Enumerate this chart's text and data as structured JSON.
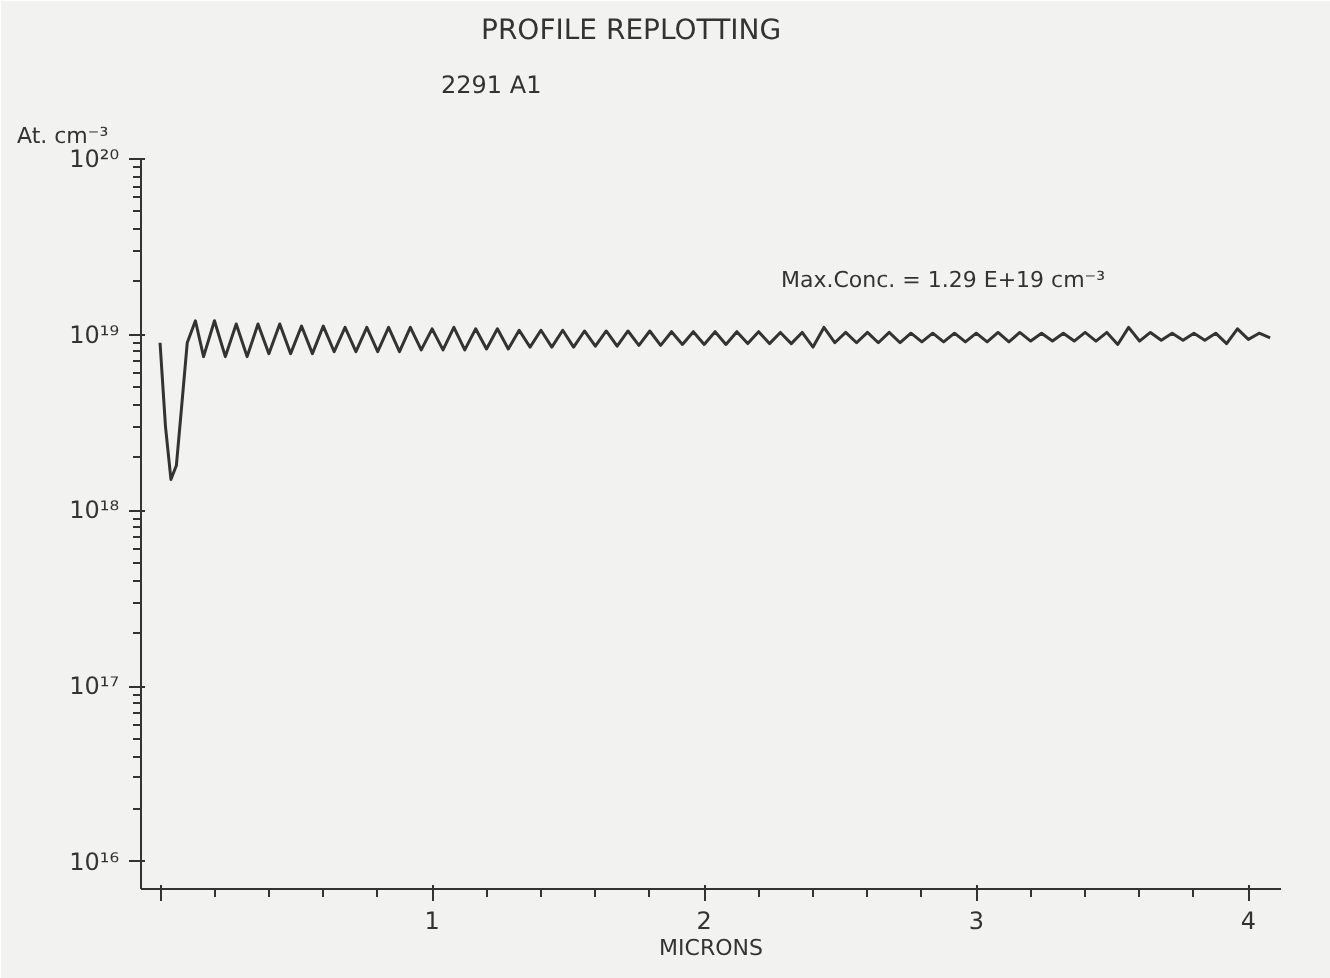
{
  "chart_data": {
    "type": "line",
    "title": "PROFILE REPLOTTING",
    "subtitle": "2291 A1",
    "xlabel": "MICRONS",
    "ylabel": "At. cm⁻³",
    "annotations": [
      "Max.Conc. = 1.29 E+19 cm⁻³"
    ],
    "log": "y",
    "grid": false,
    "marker": "none",
    "line_style": "solid",
    "xlim": [
      -0.07,
      4.12
    ],
    "ylim": [
      7000000000000000.0,
      1e+20
    ],
    "xticks": [
      {
        "value": 0,
        "label": null
      },
      1,
      2,
      3,
      4
    ],
    "yticks": [
      {
        "value": 1e+16,
        "label": "10¹⁶"
      },
      {
        "value": 1e+17,
        "label": "10¹⁷"
      },
      {
        "value": 1e+18,
        "label": "10¹⁸"
      },
      {
        "value": 1e+19,
        "label": "10¹⁹"
      },
      {
        "value": 1e+20,
        "label": "10²⁰"
      }
    ],
    "series": [
      {
        "color": "#333333",
        "x": [
          0,
          0.02,
          0.04,
          0.06,
          0.08,
          0.1,
          0.13,
          0.16,
          0.2,
          0.24,
          0.28,
          0.32,
          0.36,
          0.4,
          0.44,
          0.48,
          0.52,
          0.56,
          0.6,
          0.64,
          0.68,
          0.72,
          0.76,
          0.8,
          0.84,
          0.88,
          0.92,
          0.96,
          1.0,
          1.04,
          1.08,
          1.12,
          1.16,
          1.2,
          1.24,
          1.28,
          1.32,
          1.36,
          1.4,
          1.44,
          1.48,
          1.52,
          1.56,
          1.6,
          1.64,
          1.68,
          1.72,
          1.76,
          1.8,
          1.84,
          1.88,
          1.92,
          1.96,
          2.0,
          2.04,
          2.08,
          2.12,
          2.16,
          2.2,
          2.24,
          2.28,
          2.32,
          2.36,
          2.4,
          2.44,
          2.48,
          2.52,
          2.56,
          2.6,
          2.64,
          2.68,
          2.72,
          2.76,
          2.8,
          2.84,
          2.88,
          2.92,
          2.96,
          3.0,
          3.04,
          3.08,
          3.12,
          3.16,
          3.2,
          3.24,
          3.28,
          3.32,
          3.36,
          3.4,
          3.44,
          3.48,
          3.52,
          3.56,
          3.6,
          3.64,
          3.68,
          3.72,
          3.76,
          3.8,
          3.84,
          3.88,
          3.92,
          3.96,
          4.0,
          4.04,
          4.08
        ],
        "values": [
          9e+18,
          3e+18,
          1.5e+18,
          1.8e+18,
          4e+18,
          9e+18,
          1.2e+19,
          7.5e+18,
          1.2e+19,
          7.5e+18,
          1.15e+19,
          7.5e+18,
          1.15e+19,
          7.8e+18,
          1.15e+19,
          7.8e+18,
          1.12e+19,
          7.8e+18,
          1.12e+19,
          8e+18,
          1.1e+19,
          8e+18,
          1.1e+19,
          8e+18,
          1.1e+19,
          8e+18,
          1.1e+19,
          8.2e+18,
          1.08e+19,
          8.2e+18,
          1.1e+19,
          8.2e+18,
          1.08e+19,
          8.3e+18,
          1.08e+19,
          8.3e+18,
          1.06e+19,
          8.5e+18,
          1.06e+19,
          8.5e+18,
          1.06e+19,
          8.5e+18,
          1.05e+19,
          8.6e+18,
          1.05e+19,
          8.6e+18,
          1.05e+19,
          8.7e+18,
          1.05e+19,
          8.7e+18,
          1.04e+19,
          8.8e+18,
          1.04e+19,
          8.8e+18,
          1.04e+19,
          8.8e+18,
          1.04e+19,
          8.9e+18,
          1.04e+19,
          8.9e+18,
          1.03e+19,
          8.9e+18,
          1.03e+19,
          8.5e+18,
          1.1e+19,
          9e+18,
          1.03e+19,
          9e+18,
          1.03e+19,
          9e+18,
          1.03e+19,
          9e+18,
          1.02e+19,
          9.1e+18,
          1.02e+19,
          9.1e+18,
          1.02e+19,
          9.1e+18,
          1.02e+19,
          9.1e+18,
          1.03e+19,
          9.1e+18,
          1.03e+19,
          9.2e+18,
          1.02e+19,
          9.2e+18,
          1.02e+19,
          9.2e+18,
          1.03e+19,
          9.2e+18,
          1.03e+19,
          8.8e+18,
          1.1e+19,
          9.2e+18,
          1.03e+19,
          9.3e+18,
          1.02e+19,
          9.3e+18,
          1.02e+19,
          9.3e+18,
          1.02e+19,
          8.9e+18,
          1.08e+19,
          9.4e+18,
          1.02e+19,
          9.6e+18
        ]
      }
    ]
  }
}
